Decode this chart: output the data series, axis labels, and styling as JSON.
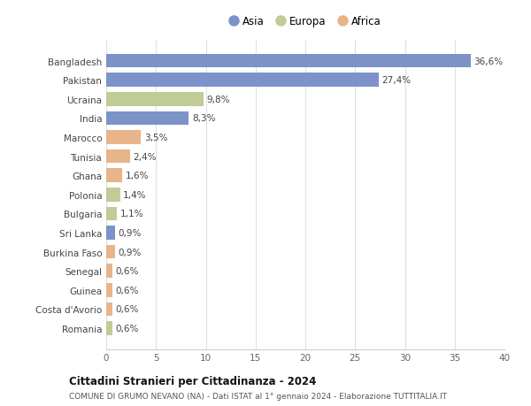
{
  "categories": [
    "Bangladesh",
    "Pakistan",
    "Ucraina",
    "India",
    "Marocco",
    "Tunisia",
    "Ghana",
    "Polonia",
    "Bulgaria",
    "Sri Lanka",
    "Burkina Faso",
    "Senegal",
    "Guinea",
    "Costa d'Avorio",
    "Romania"
  ],
  "values": [
    36.6,
    27.4,
    9.8,
    8.3,
    3.5,
    2.4,
    1.6,
    1.4,
    1.1,
    0.9,
    0.9,
    0.6,
    0.6,
    0.6,
    0.6
  ],
  "labels": [
    "36,6%",
    "27,4%",
    "9,8%",
    "8,3%",
    "3,5%",
    "2,4%",
    "1,6%",
    "1,4%",
    "1,1%",
    "0,9%",
    "0,9%",
    "0,6%",
    "0,6%",
    "0,6%",
    "0,6%"
  ],
  "continents": [
    "Asia",
    "Asia",
    "Europa",
    "Asia",
    "Africa",
    "Africa",
    "Africa",
    "Europa",
    "Europa",
    "Asia",
    "Africa",
    "Africa",
    "Africa",
    "Africa",
    "Europa"
  ],
  "colors": {
    "Asia": "#7b93c8",
    "Europa": "#c0cc96",
    "Africa": "#e8b48a"
  },
  "legend_labels": [
    "Asia",
    "Europa",
    "Africa"
  ],
  "xlim": [
    0,
    40
  ],
  "xticks": [
    0,
    5,
    10,
    15,
    20,
    25,
    30,
    35,
    40
  ],
  "title_bold": "Cittadini Stranieri per Cittadinanza - 2024",
  "subtitle": "COMUNE DI GRUMO NEVANO (NA) - Dati ISTAT al 1° gennaio 2024 - Elaborazione TUTTITALIA.IT",
  "background_color": "#ffffff",
  "grid_color": "#e0e0e0",
  "bar_height": 0.72
}
